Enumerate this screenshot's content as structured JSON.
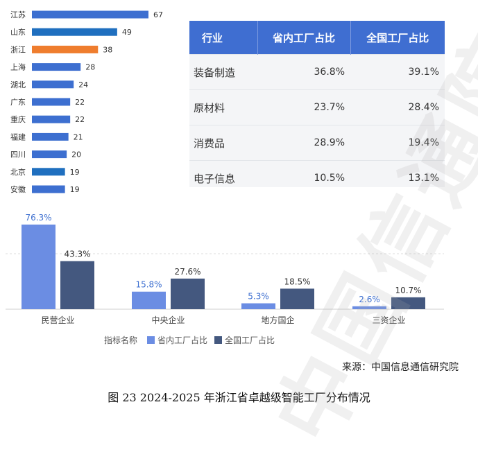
{
  "chart_data": [
    {
      "type": "bar",
      "orientation": "horizontal",
      "categories": [
        "江苏",
        "山东",
        "浙江",
        "上海",
        "湖北",
        "广东",
        "重庆",
        "福建",
        "四川",
        "北京",
        "安徽"
      ],
      "values": [
        67,
        49,
        38,
        28,
        24,
        22,
        22,
        21,
        20,
        19,
        19
      ],
      "bar_colors": [
        "#3d6fd0",
        "#1f6fbf",
        "#ef7d2e",
        "#3d6fd0",
        "#3d6fd0",
        "#3d6fd0",
        "#3d6fd0",
        "#3d6fd0",
        "#3d6fd0",
        "#1f6fbf",
        "#3d6fd0"
      ],
      "xlim": [
        0,
        67
      ]
    },
    {
      "type": "table",
      "headers": [
        "行业",
        "省内工厂占比",
        "全国工厂占比"
      ],
      "rows": [
        [
          "装备制造",
          "36.8%",
          "39.1%"
        ],
        [
          "原材料",
          "23.7%",
          "28.4%"
        ],
        [
          "消费品",
          "28.9%",
          "19.4%"
        ],
        [
          "电子信息",
          "10.5%",
          "13.1%"
        ]
      ]
    },
    {
      "type": "bar",
      "categories": [
        "民营企业",
        "中央企业",
        "地方国企",
        "三资企业"
      ],
      "series": [
        {
          "name": "省内工厂占比",
          "values": [
            76.3,
            15.8,
            5.3,
            2.6
          ],
          "labels": [
            "76.3%",
            "15.8%",
            "5.3%",
            "2.6%"
          ],
          "color": "#6b8de3"
        },
        {
          "name": "全国工厂占比",
          "values": [
            43.3,
            27.6,
            18.5,
            10.7
          ],
          "labels": [
            "43.3%",
            "27.6%",
            "18.5%",
            "10.7%"
          ],
          "color": "#44587f"
        }
      ],
      "ylim": [
        0,
        80
      ],
      "legend_title": "指标名称",
      "legend_position": "bottom"
    }
  ],
  "source": "来源：中国信息通信研究院",
  "caption": "图 23 2024-2025 年浙江省卓越级智能工厂分布情况",
  "watermark": "中国信通院",
  "colors": {
    "label_blue": "#3d6fd0",
    "table_header": "#3f6ed1"
  }
}
